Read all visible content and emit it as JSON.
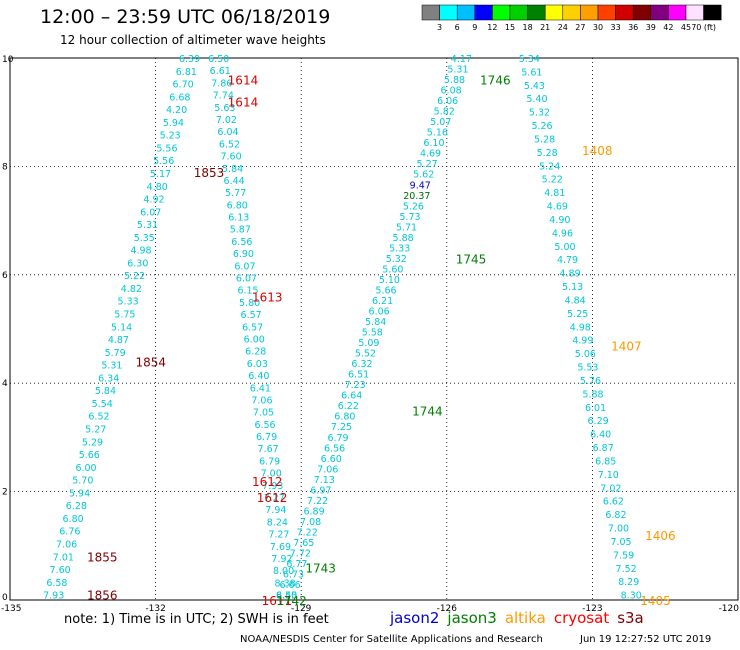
{
  "header": {
    "title": "12:00 – 23:59 UTC 06/18/2019",
    "subtitle": "12 hour collection of altimeter wave heights"
  },
  "colorbar": {
    "labels": [
      "3",
      "6",
      "9",
      "12",
      "15",
      "18",
      "21",
      "24",
      "27",
      "30",
      "33",
      "36",
      "39",
      "42",
      "45",
      "70 (ft)"
    ],
    "colors": [
      "#808080",
      "#00ffff",
      "#00bfff",
      "#0000ff",
      "#00ff00",
      "#00d000",
      "#008000",
      "#ffff00",
      "#ffd000",
      "#ffa000",
      "#ff4000",
      "#d00000",
      "#800000",
      "#800080",
      "#ff00ff",
      "#ffe0ff",
      "#000000"
    ]
  },
  "footer": {
    "note": "note:  1) Time is in UTC;  2) SWH is in feet",
    "credit": "NOAA/NESDIS Center for Satellite Applications and Research",
    "timestamp": "Jun 19 12:27:52 UTC 2019"
  },
  "legend": [
    {
      "name": "jason2",
      "color": "#0000cc"
    },
    {
      "name": "jason3",
      "color": "#008000"
    },
    {
      "name": "altika",
      "color": "#ff9900"
    },
    {
      "name": "cryosat",
      "color": "#ff0000"
    },
    {
      "name": "s3a",
      "color": "#800000"
    }
  ],
  "chart_data": {
    "type": "scatter",
    "xlim": [
      -135,
      -120
    ],
    "ylim": [
      0,
      10
    ],
    "x_ticks": [
      "-135",
      "-132",
      "-129",
      "-126",
      "-123",
      "-120"
    ],
    "y_ticks": [
      "0",
      "2",
      "4",
      "6",
      "8",
      "10"
    ],
    "grid": true,
    "tracks": [
      {
        "name": "s3a",
        "color": "#800000",
        "text_color": "#00c8d8",
        "times": [
          {
            "label": "1853",
            "lon": -130.9,
            "lat": 7.9
          },
          {
            "label": "1854",
            "lon": -132.1,
            "lat": 4.4
          },
          {
            "label": "1855",
            "lon": -133.1,
            "lat": 0.8
          },
          {
            "label": "1856",
            "lon": -133.1,
            "lat": 0.1
          }
        ],
        "start": [
          -131.3,
          10.0
        ],
        "end": [
          -134.1,
          0.1
        ],
        "values": [
          "6.39",
          "6.81",
          "6.70",
          "6.68",
          "4.20",
          "5.94",
          "5.23",
          "5.56",
          "5.56",
          "5.17",
          "4.80",
          "4.92",
          "6.07",
          "5.31",
          "5.35",
          "4.98",
          "6.30",
          "5.22",
          "4.82",
          "5.33",
          "5.75",
          "5.14",
          "4.87",
          "5.79",
          "5.31",
          "6.34",
          "5.84",
          "5.54",
          "6.52",
          "5.27",
          "5.29",
          "5.66",
          "6.00",
          "5.70",
          "5.94",
          "6.28",
          "6.80",
          "6.76",
          "7.06",
          "7.01",
          "7.60",
          "6.58",
          "7.93"
        ]
      },
      {
        "name": "cryosat",
        "color": "#dd0000",
        "text_color": "#00c8d8",
        "times": [
          {
            "label": "1614",
            "lon": -130.2,
            "lat": 9.6
          },
          {
            "label": "1614",
            "lon": -130.2,
            "lat": 9.2
          },
          {
            "label": "1613",
            "lon": -129.7,
            "lat": 5.6
          },
          {
            "label": "1612",
            "lon": -129.7,
            "lat": 2.2
          },
          {
            "label": "1612",
            "lon": -129.6,
            "lat": 1.9
          },
          {
            "label": "1611",
            "lon": -129.5,
            "lat": 0.0
          }
        ],
        "start": [
          -130.7,
          10.0
        ],
        "end": [
          -129.3,
          0.1
        ],
        "values": [
          "6.50",
          "6.61",
          "7.86",
          "7.74",
          "5.63",
          "7.02",
          "6.04",
          "6.52",
          "7.60",
          "5.84",
          "6.44",
          "5.77",
          "6.80",
          "6.13",
          "5.87",
          "6.56",
          "6.90",
          "6.07",
          "6.07",
          "6.15",
          "5.80",
          "6.57",
          "6.57",
          "6.00",
          "6.28",
          "6.03",
          "6.40",
          "6.41",
          "7.06",
          "7.05",
          "6.56",
          "6.79",
          "7.67",
          "6.79",
          "7.00",
          "7.93",
          "7.27",
          "7.94",
          "8.24",
          "7.27",
          "7.69",
          "7.92",
          "8.00",
          "8.38",
          "8.40"
        ]
      },
      {
        "name": "jason3",
        "color": "#008000",
        "text_color": "#00c8d8",
        "times": [
          {
            "label": "1746",
            "lon": -125.0,
            "lat": 9.6
          },
          {
            "label": "1745",
            "lon": -125.5,
            "lat": 6.3
          },
          {
            "label": "1744",
            "lon": -126.4,
            "lat": 3.5
          },
          {
            "label": "1743",
            "lon": -128.6,
            "lat": 0.6
          },
          {
            "label": "1742",
            "lon": -129.2,
            "lat": 0.0
          }
        ],
        "start": [
          -125.7,
          10.0
        ],
        "end": [
          -129.3,
          0.1
        ],
        "values": [
          "4.17",
          "5.31",
          "5.88",
          "6.08",
          "6.06",
          "5.82",
          "5.07",
          "5.16",
          "6.10",
          "4.69",
          "5.27",
          "5.62",
          "9.47",
          "20.37",
          "5.26",
          "5.73",
          "5.71",
          "5.88",
          "5.33",
          "5.32",
          "5.60",
          "5.10",
          "5.66",
          "6.21",
          "6.06",
          "5.84",
          "5.58",
          "5.09",
          "5.52",
          "6.32",
          "6.51",
          "7.23",
          "6.64",
          "6.22",
          "6.80",
          "7.25",
          "6.79",
          "6.56",
          "6.60",
          "7.06",
          "7.13",
          "6.97",
          "7.22",
          "6.89",
          "7.08",
          "7.22",
          "7.65",
          "7.72",
          "6.77",
          "6.73",
          "6.66",
          "6.55"
        ]
      },
      {
        "name": "altika",
        "color": "#ff9900",
        "text_color": "#00c8d8",
        "times": [
          {
            "label": "1408",
            "lon": -122.9,
            "lat": 8.3
          },
          {
            "label": "1407",
            "lon": -122.3,
            "lat": 4.7
          },
          {
            "label": "1406",
            "lon": -121.6,
            "lat": 1.2
          },
          {
            "label": "1405",
            "lon": -121.7,
            "lat": 0.0
          }
        ],
        "start": [
          -124.3,
          10.0
        ],
        "end": [
          -122.2,
          0.1
        ],
        "values": [
          "5.34",
          "5.61",
          "5.43",
          "5.40",
          "5.32",
          "5.26",
          "5.28",
          "5.28",
          "5.24",
          "5.22",
          "4.81",
          "4.69",
          "4.90",
          "4.96",
          "5.00",
          "4.79",
          "4.89",
          "5.13",
          "4.84",
          "5.25",
          "4.98",
          "4.99",
          "5.06",
          "5.53",
          "5.76",
          "5.88",
          "6.01",
          "6.29",
          "6.40",
          "6.87",
          "6.85",
          "7.10",
          "7.02",
          "6.62",
          "6.82",
          "7.00",
          "7.05",
          "7.59",
          "7.52",
          "8.29",
          "8.30"
        ]
      }
    ],
    "special_colors": {
      "9.47": "#0000cc",
      "20.37": "#007000"
    }
  }
}
